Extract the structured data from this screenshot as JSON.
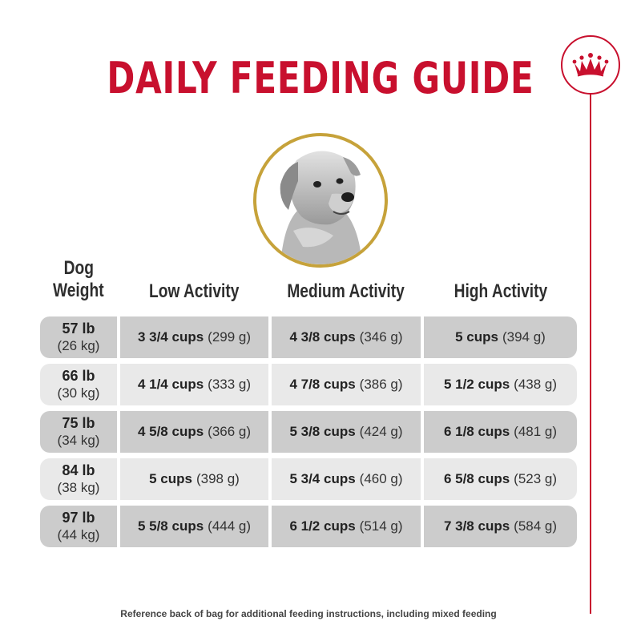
{
  "title": "DAILY FEEDING GUIDE",
  "brand": {
    "icon": "crown-icon",
    "color": "#c8102e"
  },
  "columns": {
    "weight_line1": "Dog",
    "weight_line2": "Weight",
    "low": "Low Activity",
    "medium": "Medium Activity",
    "high": "High Activity"
  },
  "rows": [
    {
      "lb": "57 lb",
      "kg": "(26 kg)",
      "low": {
        "cups": "3 3/4 cups",
        "grams": "(299 g)"
      },
      "medium": {
        "cups": "4 3/8 cups",
        "grams": "(346 g)"
      },
      "high": {
        "cups": "5 cups",
        "grams": "(394 g)"
      }
    },
    {
      "lb": "66 lb",
      "kg": "(30 kg)",
      "low": {
        "cups": "4 1/4 cups",
        "grams": "(333 g)"
      },
      "medium": {
        "cups": "4 7/8 cups",
        "grams": "(386 g)"
      },
      "high": {
        "cups": "5 1/2 cups",
        "grams": "(438 g)"
      }
    },
    {
      "lb": "75 lb",
      "kg": "(34 kg)",
      "low": {
        "cups": "4 5/8 cups",
        "grams": "(366 g)"
      },
      "medium": {
        "cups": "5 3/8 cups",
        "grams": "(424 g)"
      },
      "high": {
        "cups": "6 1/8 cups",
        "grams": "(481 g)"
      }
    },
    {
      "lb": "84 lb",
      "kg": "(38 kg)",
      "low": {
        "cups": "5 cups",
        "grams": "(398 g)"
      },
      "medium": {
        "cups": "5 3/4 cups",
        "grams": "(460 g)"
      },
      "high": {
        "cups": "6 5/8 cups",
        "grams": "(523 g)"
      }
    },
    {
      "lb": "97 lb",
      "kg": "(44 kg)",
      "low": {
        "cups": "5 5/8 cups",
        "grams": "(444 g)"
      },
      "medium": {
        "cups": "6 1/2 cups",
        "grams": "(514 g)"
      },
      "high": {
        "cups": "7 3/8 cups",
        "grams": "(584 g)"
      }
    }
  ],
  "footnote": "Reference back of bag for additional feeding instructions, including mixed feeding"
}
